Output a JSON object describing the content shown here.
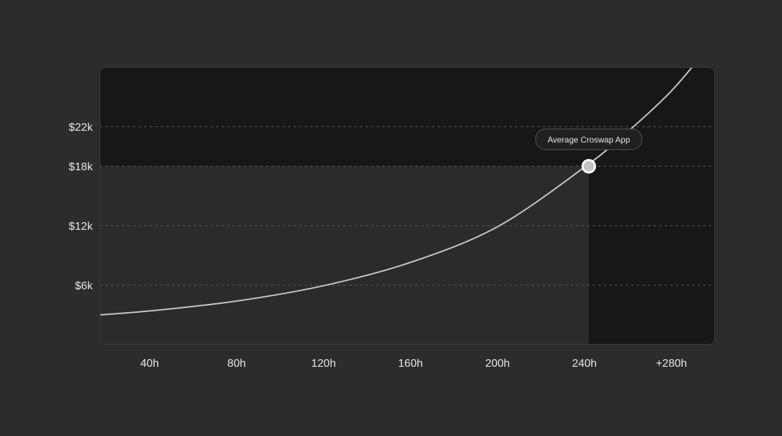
{
  "chart_data": {
    "type": "line",
    "title": "",
    "xlabel": "",
    "ylabel": "",
    "x_tick_labels": [
      "40h",
      "80h",
      "120h",
      "160h",
      "200h",
      "240h",
      "+280h"
    ],
    "x_ticks": [
      40,
      80,
      120,
      160,
      200,
      240,
      280
    ],
    "y_tick_labels": [
      "$6k",
      "$12k",
      "$18k",
      "$22k"
    ],
    "y_ticks": [
      6000,
      12000,
      18000,
      22000
    ],
    "xlim": [
      17,
      300
    ],
    "ylim": [
      0,
      28000
    ],
    "grid": "horizontal dashed",
    "series": [
      {
        "values": [
          {
            "x": 17,
            "y": 3000
          },
          {
            "x": 40,
            "y": 3400
          },
          {
            "x": 80,
            "y": 4400
          },
          {
            "x": 120,
            "y": 5950
          },
          {
            "x": 160,
            "y": 8300
          },
          {
            "x": 200,
            "y": 11900
          },
          {
            "x": 240,
            "y": 17900
          },
          {
            "x": 260,
            "y": 21500
          },
          {
            "x": 280,
            "y": 25600
          },
          {
            "x": 297,
            "y": 30000
          }
        ]
      }
    ],
    "highlight": {
      "label": "Average Croswap App",
      "x": 242,
      "y": 18000
    },
    "colors": {
      "background": "#2c2c2c",
      "plot_dark": "#171717",
      "plot_light": "#2b2b2b",
      "line": "#c8c8c8",
      "grid": "#5a5a5a",
      "text": "#e8e8e8"
    }
  }
}
